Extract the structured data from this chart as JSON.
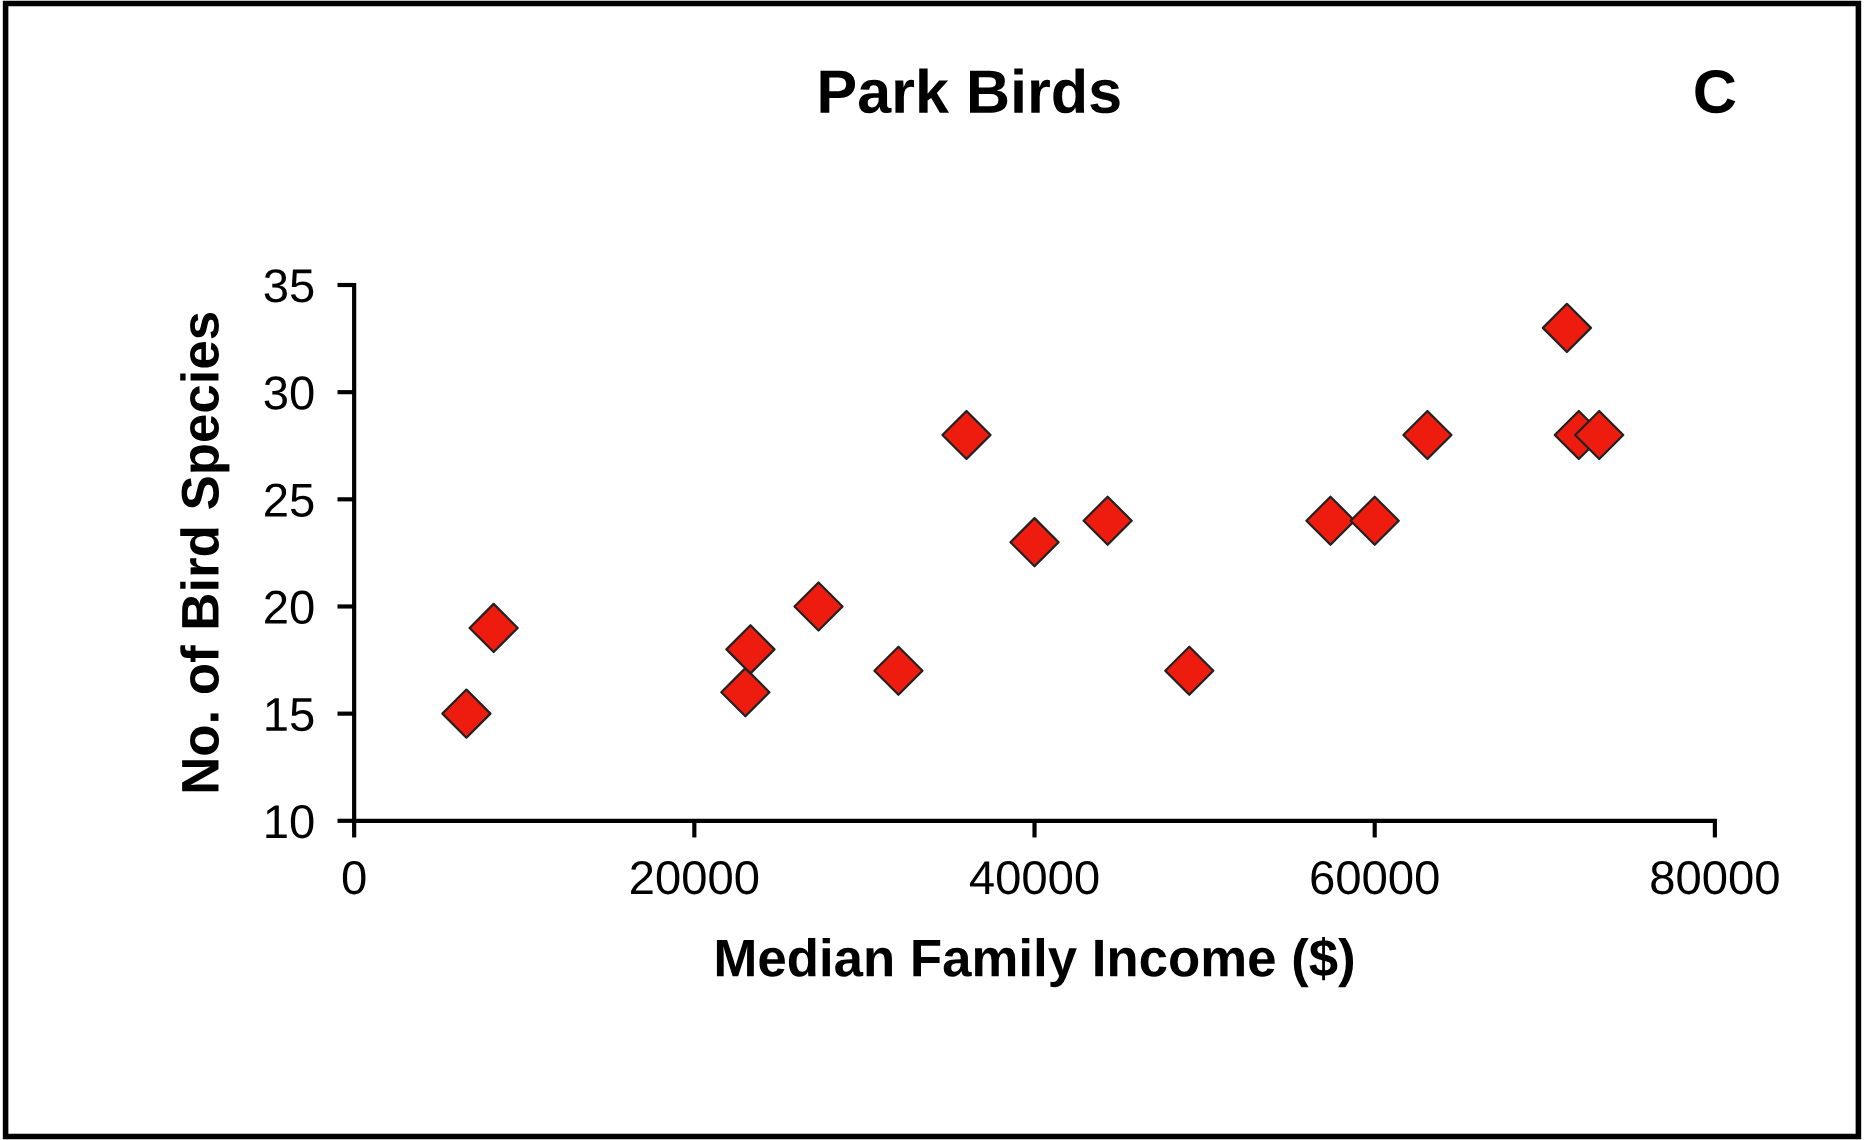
{
  "chart_data": {
    "type": "scatter",
    "title": "Park Birds",
    "xlabel": "Median Family Income ($)",
    "ylabel": "No. of Bird Species",
    "annotations": [
      "C"
    ],
    "x": [
      6600,
      8200,
      23000,
      23300,
      27300,
      32000,
      36000,
      40000,
      44300,
      49100,
      57400,
      60000,
      63100,
      71300,
      72000,
      73200
    ],
    "series": [
      {
        "color": "#ee1c0e",
        "values": [
          15,
          19,
          16,
          18,
          20,
          17,
          28,
          23,
          24,
          17,
          24,
          24,
          28,
          33,
          28,
          28
        ]
      }
    ],
    "xlim": [
      0,
      80000
    ],
    "xticks": [
      0,
      20000,
      40000,
      60000,
      80000
    ],
    "ylim": [
      10,
      35
    ],
    "yticks": [
      10,
      15,
      20,
      25,
      30,
      35
    ],
    "marker": "diamond",
    "grid": false,
    "legend": false
  }
}
